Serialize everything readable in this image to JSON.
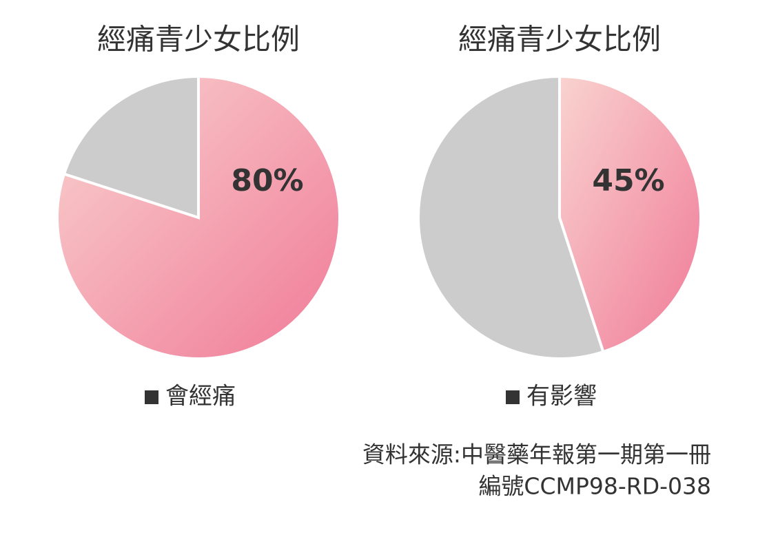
{
  "chart_data": [
    {
      "type": "pie",
      "title": "經痛青少女比例",
      "categories": [
        "會經痛",
        null
      ],
      "values": [
        80,
        20
      ],
      "value_labels": [
        "80%",
        null
      ],
      "colors": [
        "#f07a98",
        "#cccccc"
      ]
    },
    {
      "type": "pie",
      "title": "經痛青少女比例",
      "categories": [
        "有影響",
        null
      ],
      "values": [
        45,
        55
      ],
      "value_labels": [
        "45%",
        null
      ],
      "colors": [
        "#f07a98",
        "#cccccc"
      ]
    }
  ],
  "source": [
    "資料來源:中醫藥年報第一期第一冊",
    "編號CCMP98-RD-038"
  ]
}
